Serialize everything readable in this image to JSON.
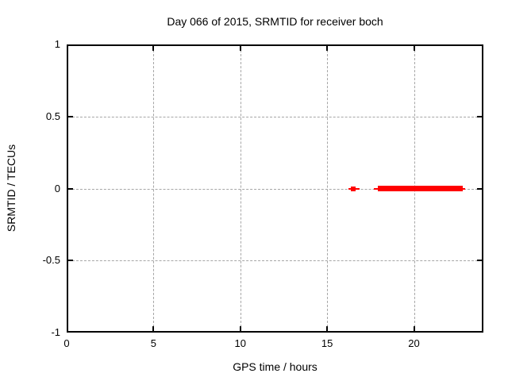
{
  "page": {
    "background_color": "#ffffff",
    "text_color": "#000000"
  },
  "chart_data": {
    "type": "scatter",
    "title": "Day 066 of 2015, SRMTID for receiver boch",
    "xlabel": "GPS time / hours",
    "ylabel": "SRMTID / TECUs",
    "xlim": [
      0,
      24
    ],
    "ylim": [
      -1,
      1
    ],
    "grid": true,
    "grid_style": "dashed",
    "legend_position": "none",
    "xticks": [
      {
        "label": "0",
        "value": 0
      },
      {
        "label": "5",
        "value": 5
      },
      {
        "label": "10",
        "value": 10
      },
      {
        "label": "15",
        "value": 15
      },
      {
        "label": "20",
        "value": 20
      }
    ],
    "yticks": [
      {
        "label": "1",
        "value": 1
      },
      {
        "label": "0.5",
        "value": 0.5
      },
      {
        "label": "0",
        "value": 0
      },
      {
        "label": "-0.5",
        "value": -0.5
      },
      {
        "label": "-1",
        "value": -1
      }
    ],
    "colors": {
      "data": "#ff0000",
      "grid": "#a6a6a6",
      "axis": "#000000",
      "text": "#000000"
    },
    "series": [
      {
        "name": "SRMTID",
        "style": "points",
        "color": "#ff0000",
        "y_value": 0,
        "segments": [
          {
            "x_start": 16.23,
            "x_end": 16.87,
            "marker_px": 2
          },
          {
            "x_start": 16.37,
            "x_end": 16.66,
            "marker_px": 6
          },
          {
            "x_start": 17.69,
            "x_end": 22.95,
            "marker_px": 2
          },
          {
            "x_start": 17.92,
            "x_end": 22.79,
            "marker_px": 7
          }
        ]
      }
    ]
  }
}
